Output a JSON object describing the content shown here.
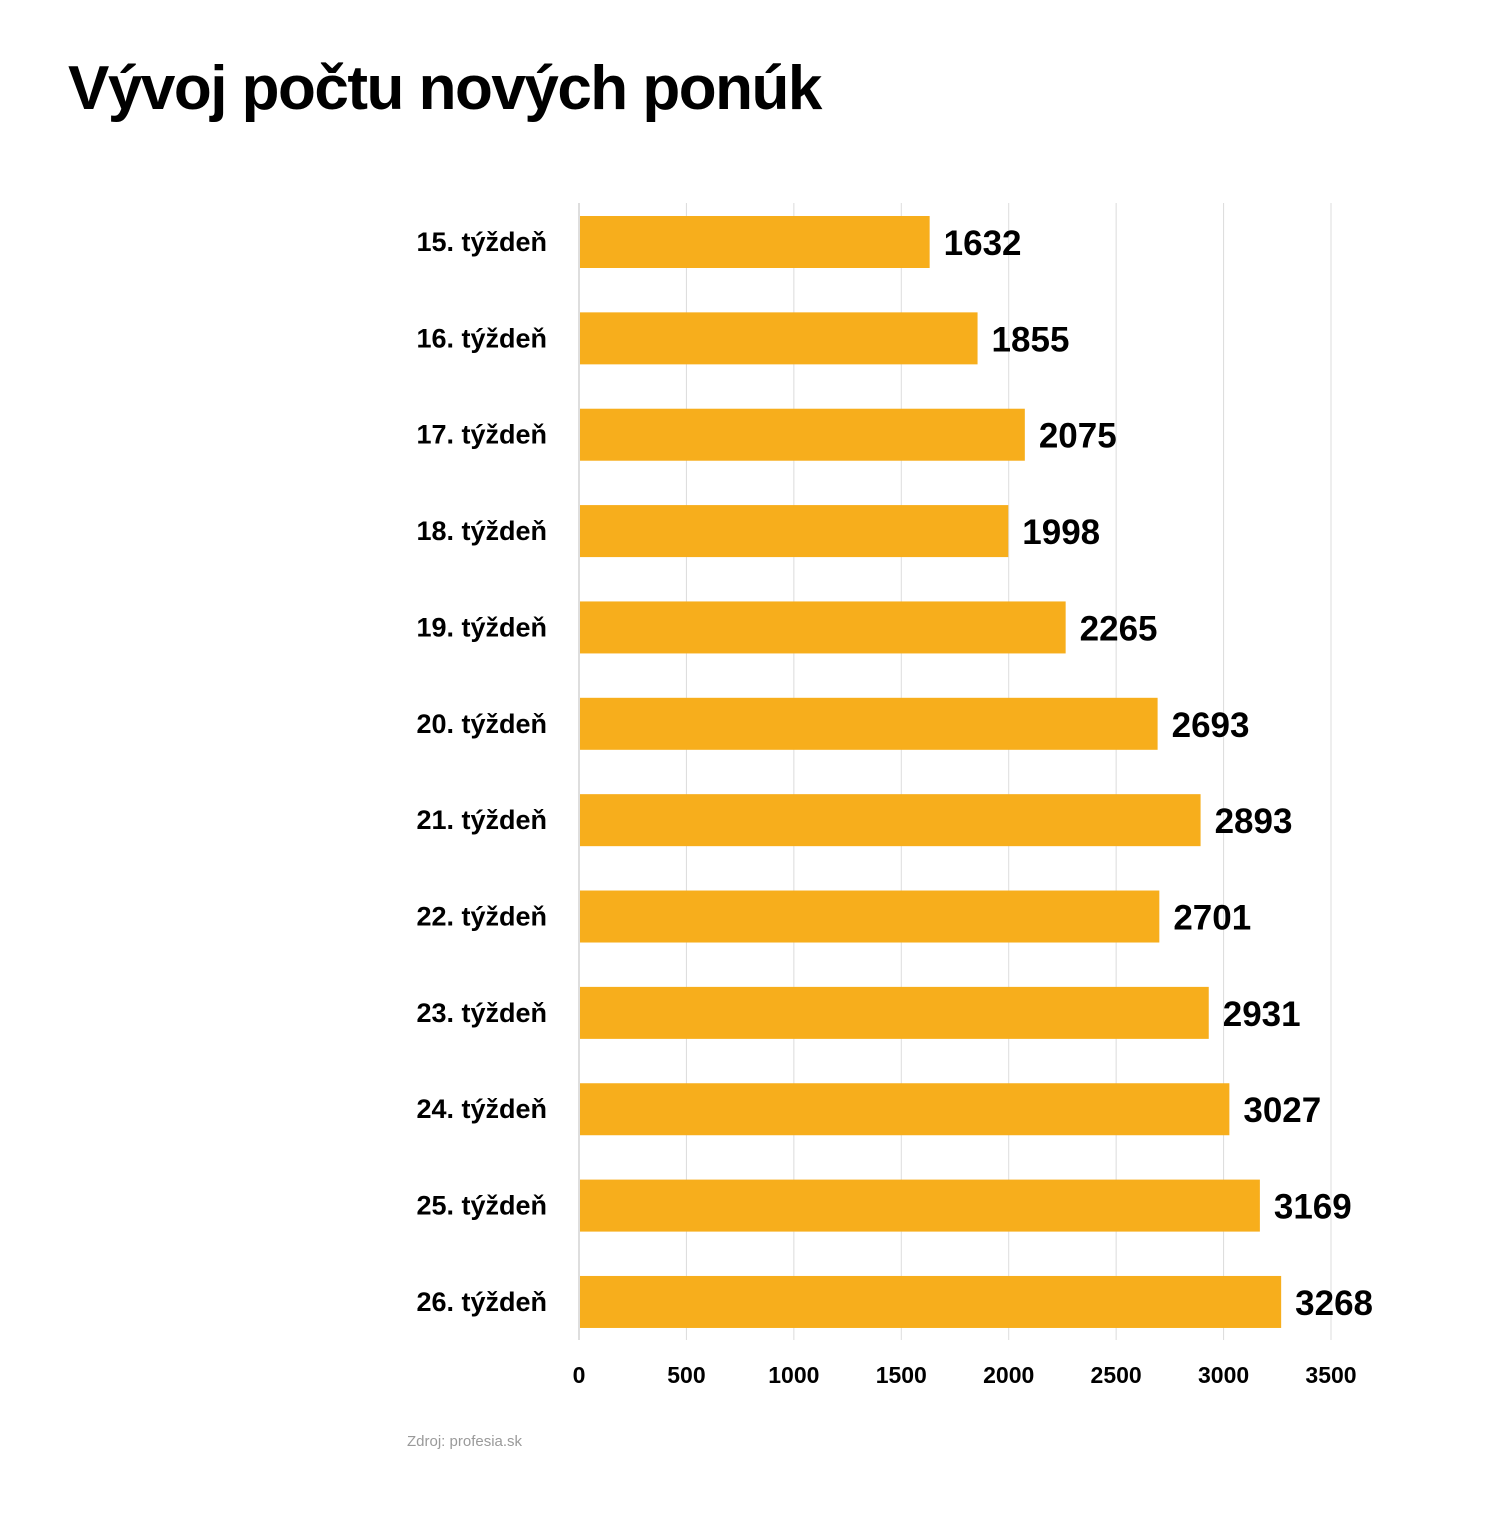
{
  "chart_data": {
    "type": "bar",
    "orientation": "horizontal",
    "title": "Vývoj počtu nových ponúk",
    "categories": [
      "15. týždeň",
      "16. týždeň",
      "17. týždeň",
      "18. týždeň",
      "19. týždeň",
      "20. týždeň",
      "21. týždeň",
      "22. týždeň",
      "23. týždeň",
      "24. týždeň",
      "25. týždeň",
      "26. týždeň"
    ],
    "values": [
      1632,
      1855,
      2075,
      1998,
      2265,
      2693,
      2893,
      2701,
      2931,
      3027,
      3169,
      3268
    ],
    "data_labels": [
      "1632",
      "1855",
      "2075",
      "1998",
      "2265",
      "2693",
      "2893",
      "2701",
      "2931",
      "3027",
      "3169",
      "3268"
    ],
    "xticks": [
      "0",
      "500",
      "1000",
      "1500",
      "2000",
      "2500",
      "3000",
      "3500"
    ],
    "xlim": [
      0,
      3500
    ],
    "xlabel": "",
    "ylabel": "",
    "grid": "vertical",
    "bar_color": "#f7ae1c"
  },
  "source": "Zdroj: profesia.sk"
}
